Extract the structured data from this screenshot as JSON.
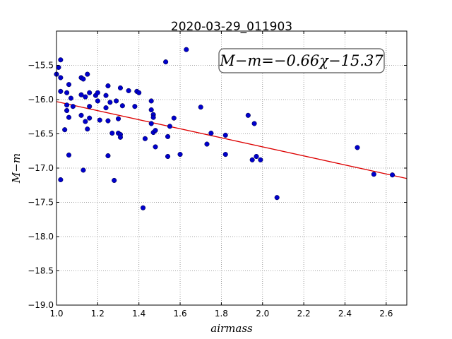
{
  "chart_data": {
    "type": "scatter",
    "title": "2020-03-29_011903",
    "xlabel": "airmass",
    "ylabel": "M−m",
    "xlim": [
      1.0,
      2.7
    ],
    "ylim": [
      -19.0,
      -15.0
    ],
    "y_inverted": true,
    "grid": true,
    "x_ticks": [
      1.0,
      1.2,
      1.4,
      1.6,
      1.8,
      2.0,
      2.2,
      2.4,
      2.6
    ],
    "x_tick_labels": [
      "1.0",
      "1.2",
      "1.4",
      "1.6",
      "1.8",
      "2.0",
      "2.2",
      "2.4",
      "2.6"
    ],
    "y_ticks": [
      -15.5,
      -16.0,
      -16.5,
      -17.0,
      -17.5,
      -18.0,
      -18.5,
      -19.0
    ],
    "y_tick_labels": [
      "−15.5",
      "−16.0",
      "−16.5",
      "−17.0",
      "−17.5",
      "−18.0",
      "−18.5",
      "−19.0"
    ],
    "annotation": "M−m=−0.66χ−15.37",
    "fit": {
      "slope": -0.66,
      "intercept": -15.37
    },
    "colors": {
      "points": "#0000cc",
      "fit_line": "#dd0000",
      "grid": "#888888"
    },
    "series": [
      {
        "marker": "circle",
        "x": [
          1.0,
          1.01,
          1.02,
          1.02,
          1.02,
          1.02,
          1.04,
          1.05,
          1.05,
          1.05,
          1.06,
          1.06,
          1.06,
          1.07,
          1.08,
          1.12,
          1.12,
          1.12,
          1.13,
          1.13,
          1.14,
          1.14,
          1.15,
          1.15,
          1.16,
          1.16,
          1.16,
          1.19,
          1.2,
          1.2,
          1.21,
          1.24,
          1.24,
          1.25,
          1.25,
          1.25,
          1.26,
          1.27,
          1.28,
          1.29,
          1.3,
          1.3,
          1.31,
          1.31,
          1.31,
          1.32,
          1.35,
          1.38,
          1.39,
          1.4,
          1.42,
          1.43,
          1.46,
          1.46,
          1.46,
          1.47,
          1.47,
          1.47,
          1.48,
          1.48,
          1.53,
          1.54,
          1.54,
          1.55,
          1.57,
          1.6,
          1.63,
          1.7,
          1.73,
          1.75,
          1.82,
          1.82,
          1.93,
          1.95,
          1.96,
          1.97,
          1.99,
          2.07,
          2.46,
          2.54,
          2.63
        ],
        "y": [
          -15.63,
          -15.53,
          -15.42,
          -15.68,
          -15.88,
          -17.17,
          -16.44,
          -15.9,
          -16.08,
          -16.16,
          -15.78,
          -16.26,
          -16.81,
          -15.98,
          -16.1,
          -15.68,
          -15.93,
          -16.23,
          -15.7,
          -17.03,
          -15.96,
          -16.32,
          -15.63,
          -16.43,
          -15.9,
          -16.1,
          -16.27,
          -15.94,
          -15.9,
          -16.02,
          -16.3,
          -15.94,
          -16.12,
          -16.31,
          -16.82,
          -15.8,
          -16.04,
          -16.49,
          -17.18,
          -16.02,
          -16.49,
          -16.28,
          -15.83,
          -16.51,
          -16.55,
          -16.09,
          -15.87,
          -16.1,
          -15.88,
          -15.9,
          -17.58,
          -16.57,
          -16.02,
          -16.15,
          -16.35,
          -16.22,
          -16.26,
          -16.48,
          -16.69,
          -16.45,
          -15.45,
          -16.83,
          -16.54,
          -16.39,
          -16.27,
          -16.8,
          -15.27,
          -16.11,
          -16.65,
          -16.49,
          -16.52,
          -16.8,
          -16.23,
          -16.88,
          -16.35,
          -16.83,
          -16.88,
          -17.43,
          -16.7,
          -17.09,
          -17.1
        ]
      }
    ]
  }
}
